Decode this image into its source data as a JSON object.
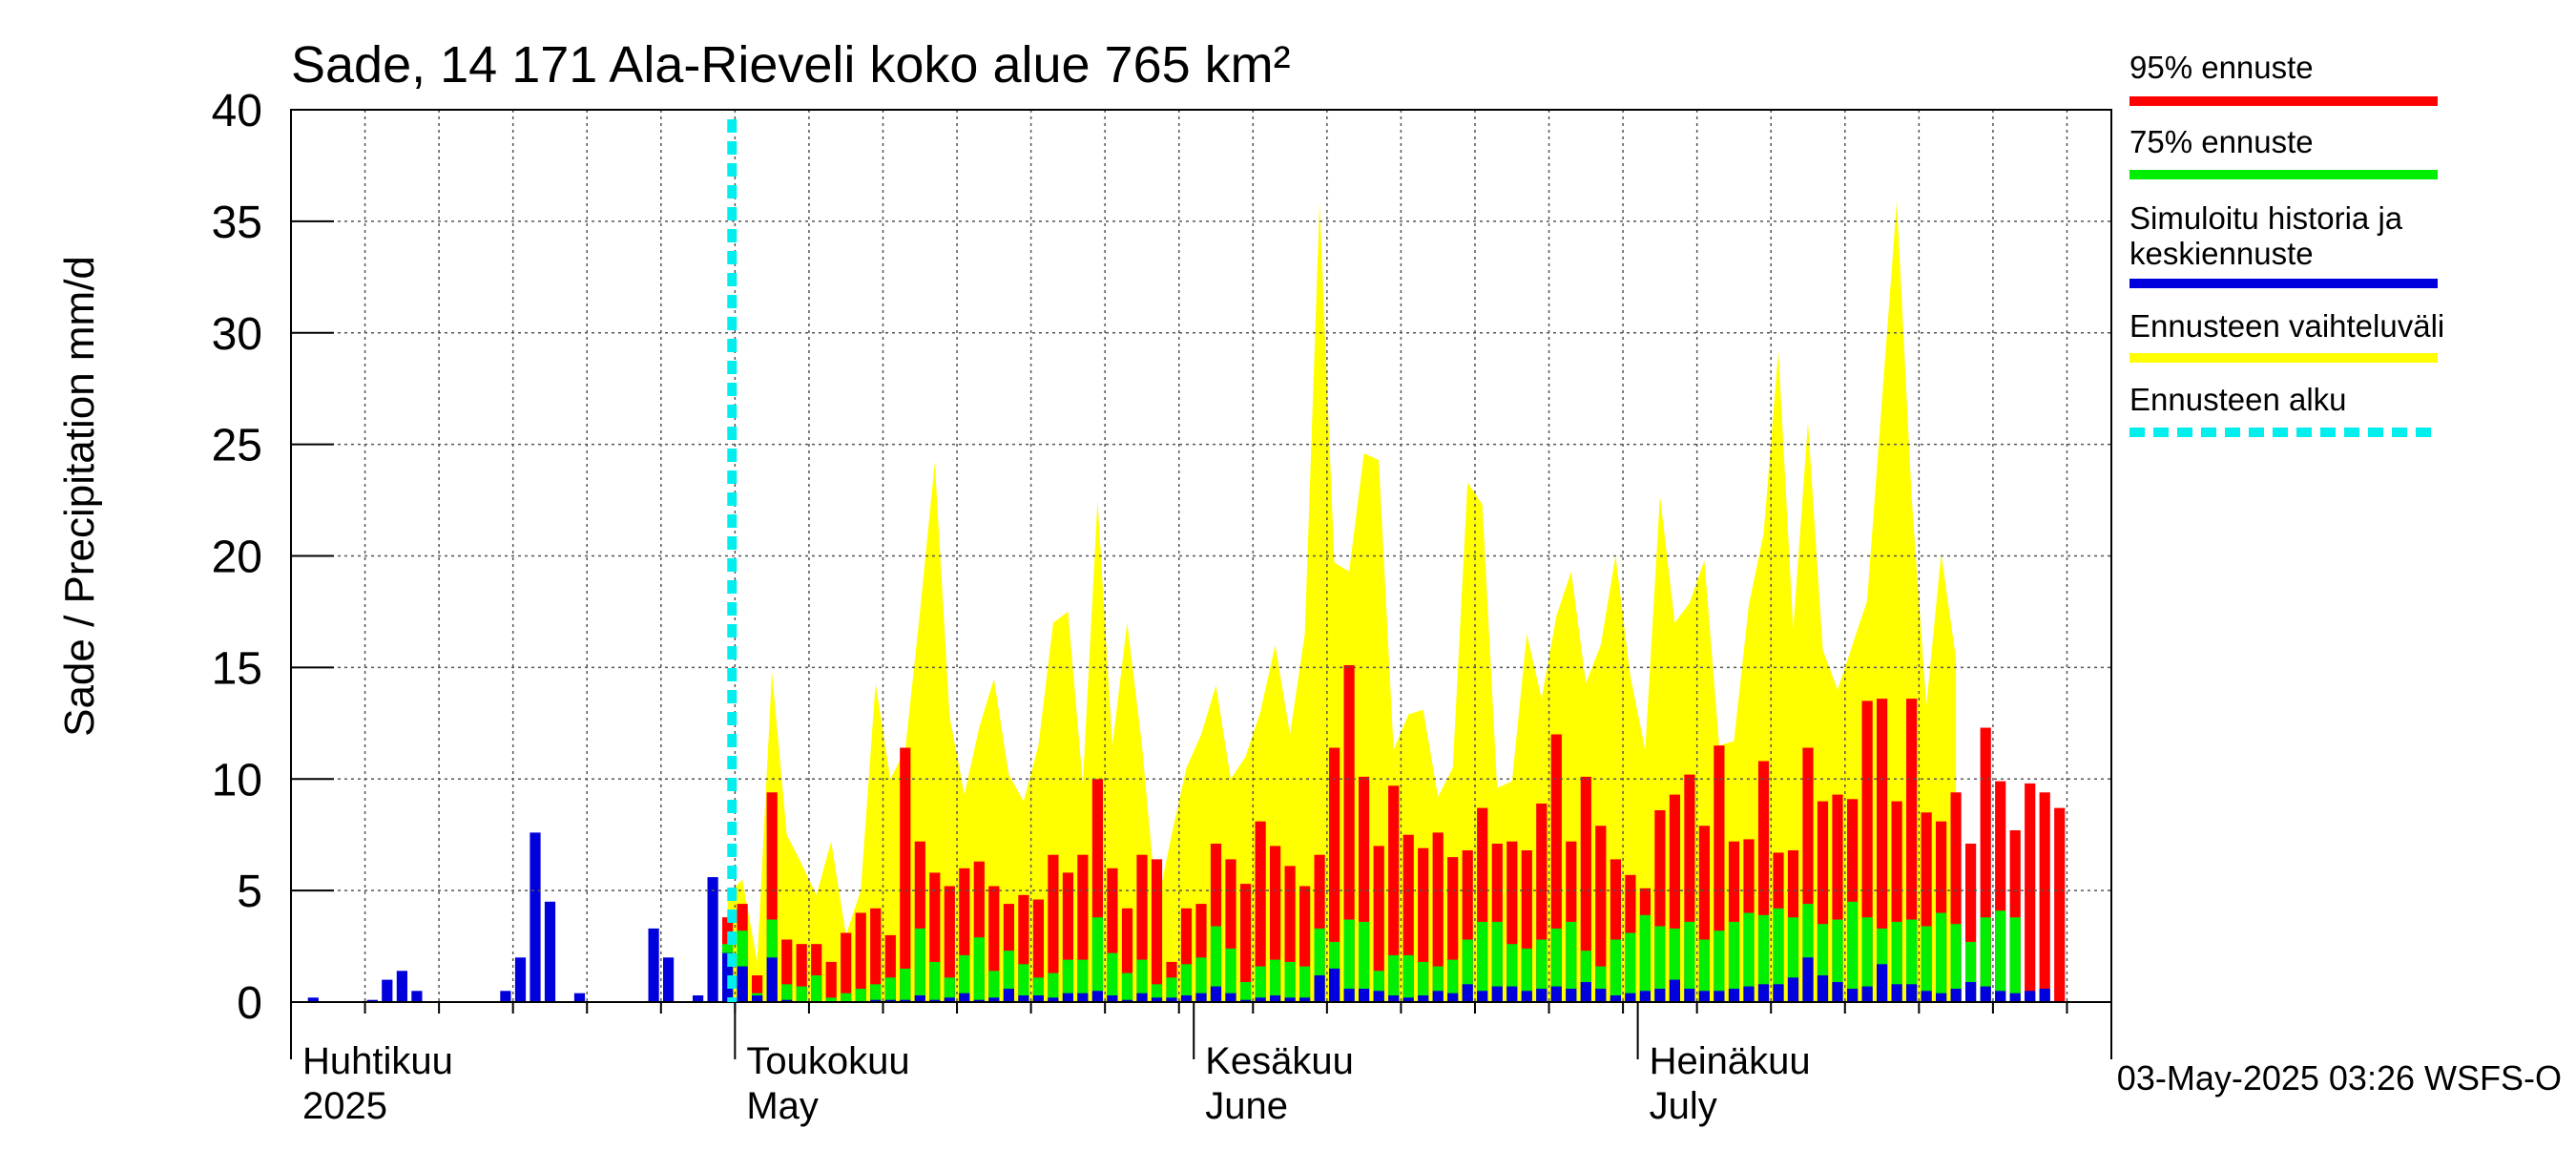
{
  "chart_data": {
    "type": "bar",
    "title": "Sade, 14 171 Ala-Rieveli koko alue 765 km²",
    "ylabel": "Sade / Precipitation   mm/d",
    "xlabel": "",
    "ylim": [
      0,
      40
    ],
    "yticks": [
      0,
      5,
      10,
      15,
      20,
      25,
      30,
      35,
      40
    ],
    "grid": true,
    "legend_position": "right",
    "x_start": "2025-04-01",
    "x_end": "2025-08-02",
    "forecast_start": "2025-05-03",
    "month_labels": [
      {
        "line1": "Huhtikuu",
        "line2": "2025",
        "date": "2025-04-01"
      },
      {
        "line1": "Toukokuu",
        "line2": "May",
        "date": "2025-05-01"
      },
      {
        "line1": "Kesäkuu",
        "line2": "June",
        "date": "2025-06-01"
      },
      {
        "line1": "Heinäkuu",
        "line2": "July",
        "date": "2025-07-01"
      }
    ],
    "series": [
      {
        "name": "95% ennuste",
        "color": "#ff0000"
      },
      {
        "name": "75% ennuste",
        "color": "#00ee00"
      },
      {
        "name": "Simuloitu historia ja keskiennuste",
        "color": "#0000dd"
      },
      {
        "name": "Ennusteen vaihteluväli",
        "color": "#ffff00"
      },
      {
        "name": "Ennusteen alku",
        "color": "#00eeee"
      }
    ],
    "history": [
      {
        "date": "2025-04-01",
        "value": 0.0
      },
      {
        "date": "2025-04-02",
        "value": 0.2
      },
      {
        "date": "2025-04-03",
        "value": 0.0
      },
      {
        "date": "2025-04-04",
        "value": 0.0
      },
      {
        "date": "2025-04-05",
        "value": 0.0
      },
      {
        "date": "2025-04-06",
        "value": 0.1
      },
      {
        "date": "2025-04-07",
        "value": 1.0
      },
      {
        "date": "2025-04-08",
        "value": 1.4
      },
      {
        "date": "2025-04-09",
        "value": 0.5
      },
      {
        "date": "2025-04-10",
        "value": 0.0
      },
      {
        "date": "2025-04-11",
        "value": 0.0
      },
      {
        "date": "2025-04-12",
        "value": 0.0
      },
      {
        "date": "2025-04-13",
        "value": 0.0
      },
      {
        "date": "2025-04-14",
        "value": 0.0
      },
      {
        "date": "2025-04-15",
        "value": 0.5
      },
      {
        "date": "2025-04-16",
        "value": 2.0
      },
      {
        "date": "2025-04-17",
        "value": 7.6
      },
      {
        "date": "2025-04-18",
        "value": 4.5
      },
      {
        "date": "2025-04-19",
        "value": 0.0
      },
      {
        "date": "2025-04-20",
        "value": 0.4
      },
      {
        "date": "2025-04-21",
        "value": 0.0
      },
      {
        "date": "2025-04-22",
        "value": 0.0
      },
      {
        "date": "2025-04-23",
        "value": 0.0
      },
      {
        "date": "2025-04-24",
        "value": 0.0
      },
      {
        "date": "2025-04-25",
        "value": 3.3
      },
      {
        "date": "2025-04-26",
        "value": 2.0
      },
      {
        "date": "2025-04-27",
        "value": 0.0
      },
      {
        "date": "2025-04-28",
        "value": 0.3
      },
      {
        "date": "2025-04-29",
        "value": 5.6
      },
      {
        "date": "2025-04-30",
        "value": 2.2
      },
      {
        "date": "2025-05-01",
        "value": 1.6
      },
      {
        "date": "2025-05-02",
        "value": 0.3
      }
    ],
    "forecast": {
      "start_date": "2025-04-30",
      "range_max": [
        4.8,
        5.5,
        1.8,
        14.8,
        7.5,
        6.2,
        4.8,
        7.2,
        3.0,
        5.0,
        14.3,
        10.0,
        11.3,
        17.5,
        24.2,
        12.8,
        9.3,
        12.3,
        14.5,
        10.2,
        9.0,
        11.5,
        17.0,
        17.5,
        9.8,
        22.5,
        11.5,
        17.0,
        11.5,
        4.2,
        7.5,
        10.5,
        12.0,
        14.2,
        10.0,
        11.0,
        13.0,
        16.0,
        12.0,
        16.5,
        35.8,
        19.7,
        19.3,
        24.6,
        24.3,
        11.3,
        12.9,
        13.1,
        9.2,
        10.5,
        23.3,
        22.3,
        9.6,
        9.9,
        16.5,
        13.6,
        17.3,
        19.3,
        14.3,
        16.0,
        20.0,
        14.6,
        11.3,
        22.7,
        17.0,
        17.9,
        19.8,
        11.5,
        11.7,
        17.8,
        21.0,
        29.2,
        16.7,
        26.0,
        15.8,
        14.0,
        16.0,
        18.0,
        27.0,
        35.9,
        22.7,
        13.3,
        20.1,
        15.4
      ],
      "p95": [
        3.8,
        4.4,
        1.2,
        9.4,
        2.8,
        2.6,
        2.6,
        1.8,
        3.1,
        4.0,
        4.2,
        3.0,
        11.4,
        7.2,
        5.8,
        5.2,
        6.0,
        6.3,
        5.2,
        4.4,
        4.8,
        4.6,
        6.6,
        5.8,
        6.6,
        10.0,
        6.0,
        4.2,
        6.6,
        6.4,
        1.8,
        4.2,
        4.4,
        7.1,
        6.4,
        5.3,
        8.1,
        7.0,
        6.1,
        5.2,
        6.6,
        11.4,
        15.1,
        10.1,
        7.0,
        9.7,
        7.5,
        6.9,
        7.6,
        6.5,
        6.8,
        8.7,
        7.1,
        7.2,
        6.8,
        8.9,
        12.0,
        7.2,
        10.1,
        7.9,
        6.4,
        5.7,
        5.1,
        8.6,
        9.3,
        10.2,
        7.9,
        11.5,
        7.2,
        7.3,
        10.8,
        6.7,
        6.8,
        11.4,
        9.0,
        9.3,
        9.1,
        13.5,
        13.6,
        9.0,
        13.6,
        8.5,
        8.1,
        9.4,
        7.1,
        12.3,
        9.9,
        7.7,
        9.8,
        9.4,
        8.7
      ],
      "p75": [
        2.6,
        3.2,
        0.4,
        3.7,
        0.8,
        0.7,
        1.2,
        0.2,
        0.4,
        0.6,
        0.8,
        1.1,
        1.5,
        3.3,
        1.8,
        1.1,
        2.1,
        2.9,
        1.4,
        2.3,
        1.7,
        1.1,
        1.3,
        1.9,
        1.9,
        3.8,
        2.2,
        1.3,
        1.9,
        0.8,
        1.1,
        1.7,
        2.0,
        3.4,
        2.4,
        0.9,
        1.6,
        1.9,
        1.8,
        1.6,
        3.3,
        2.7,
        3.7,
        3.6,
        1.4,
        2.1,
        2.1,
        1.8,
        1.6,
        1.9,
        2.8,
        3.6,
        3.6,
        2.6,
        2.4,
        2.8,
        3.3,
        3.6,
        2.3,
        1.6,
        2.8,
        3.1,
        3.9,
        3.4,
        3.3,
        3.6,
        2.8,
        3.2,
        3.6,
        4.0,
        3.9,
        4.2,
        3.8,
        4.4,
        3.5,
        3.7,
        4.5,
        3.8,
        3.3,
        3.6,
        3.7,
        3.4,
        4.0,
        3.5,
        2.7,
        3.8,
        4.1,
        3.8
      ],
      "median": [
        2.2,
        1.6,
        0.3,
        2.0,
        0.1,
        0.0,
        0.0,
        0.0,
        0.0,
        0.0,
        0.1,
        0.1,
        0.1,
        0.3,
        0.1,
        0.2,
        0.4,
        0.1,
        0.2,
        0.6,
        0.3,
        0.3,
        0.2,
        0.4,
        0.4,
        0.5,
        0.3,
        0.1,
        0.4,
        0.2,
        0.2,
        0.3,
        0.4,
        0.7,
        0.4,
        0.1,
        0.2,
        0.3,
        0.2,
        0.2,
        1.2,
        1.5,
        0.6,
        0.6,
        0.5,
        0.3,
        0.2,
        0.3,
        0.5,
        0.4,
        0.8,
        0.5,
        0.7,
        0.7,
        0.5,
        0.6,
        0.7,
        0.6,
        0.9,
        0.6,
        0.3,
        0.4,
        0.5,
        0.6,
        1.0,
        0.6,
        0.5,
        0.5,
        0.6,
        0.7,
        0.8,
        0.8,
        1.1,
        2.0,
        1.2,
        0.9,
        0.6,
        0.7,
        1.7,
        0.8,
        0.8,
        0.5,
        0.4,
        0.6,
        0.9,
        0.7,
        0.5,
        0.4,
        0.5,
        0.6
      ]
    },
    "timestamp": "03-May-2025 03:26 WSFS-O"
  }
}
